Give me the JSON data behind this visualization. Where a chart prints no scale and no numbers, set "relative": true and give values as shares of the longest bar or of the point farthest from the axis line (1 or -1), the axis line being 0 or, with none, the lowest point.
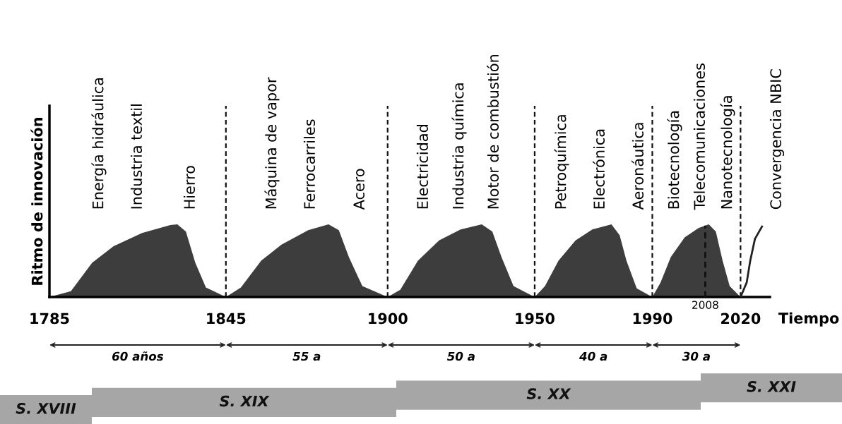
{
  "chart_data": {
    "type": "area",
    "relative": true,
    "xlabel": "Tiempo",
    "ylabel": "Ritmo de innovación",
    "xlim": [
      1785,
      2030
    ],
    "xticks": [
      1785,
      1845,
      1900,
      1950,
      1990,
      2020
    ],
    "series": [
      {
        "type": "area",
        "color": "#3d3d3d",
        "x": [
          1785,
          1792.3,
          1799.5,
          1806.8,
          1816.5,
          1826.1,
          1828.5,
          1831.4,
          1834.6,
          1838.2,
          1845,
          1850.1,
          1857.0,
          1863.9,
          1873.0,
          1879.9,
          1883.4,
          1886.8,
          1891.4,
          1900,
          1904.3,
          1910.3,
          1917.5,
          1924.8,
          1932.0,
          1935.6,
          1938.7,
          1942.8,
          1950,
          1953.5,
          1958.1,
          1963.9,
          1969.6,
          1976.1,
          1978.9,
          1981.2,
          1984.7,
          1990,
          1992.8,
          1996.3,
          2001.0,
          2005.7,
          2009.2,
          2011.6,
          2013.9,
          2016.3,
          2020
        ],
        "values": [
          0,
          0.08,
          0.47,
          0.7,
          0.88,
          0.99,
          1.0,
          0.9,
          0.47,
          0.13,
          0,
          0.13,
          0.5,
          0.72,
          0.92,
          1.0,
          0.92,
          0.55,
          0.15,
          0,
          0.1,
          0.5,
          0.78,
          0.93,
          1.0,
          0.9,
          0.55,
          0.15,
          0,
          0.15,
          0.5,
          0.78,
          0.93,
          1.0,
          0.85,
          0.5,
          0.12,
          0,
          0.2,
          0.55,
          0.82,
          0.95,
          1.0,
          0.9,
          0.5,
          0.15,
          0
        ]
      },
      {
        "type": "line",
        "color": "#222222",
        "x": [
          2020,
          2022.1,
          2023.3,
          2024.9,
          2027.3
        ],
        "values": [
          0,
          0.2,
          0.5,
          0.8,
          0.97
        ]
      }
    ],
    "ref_lines": [
      {
        "axis": "x",
        "value": 1845,
        "line_style": "dashed"
      },
      {
        "axis": "x",
        "value": 1900,
        "line_style": "dashed"
      },
      {
        "axis": "x",
        "value": 1950,
        "line_style": "dashed"
      },
      {
        "axis": "x",
        "value": 1990,
        "line_style": "dashed"
      },
      {
        "axis": "x",
        "value": 2020,
        "line_style": "dashed"
      },
      {
        "axis": "x",
        "value": 2008,
        "label": "2008",
        "line_style": "dashed"
      }
    ],
    "annotations": [
      "Energía hidráulica",
      "Industria textil",
      "Hierro",
      "Máquina de vapor",
      "Ferrocarriles",
      "Acero",
      "Electricidad",
      "Industria química",
      "Motor de combustión",
      "Petroquímica",
      "Electrónica",
      "Aeronáutica",
      "Biotecnología",
      "Telecomunicaciones",
      "Nanotecnología",
      "Convergencia NBIC",
      "60 años",
      "55 a",
      "50 a",
      "40 a",
      "30 a",
      "S. XVIII",
      "S. XIX",
      "S. XX",
      "S. XXI"
    ]
  }
}
